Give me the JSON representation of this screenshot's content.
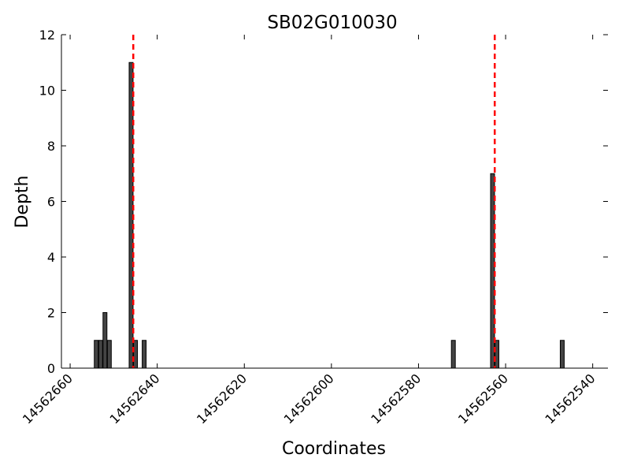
{
  "chart_data": {
    "type": "bar",
    "title": "SB02G010030",
    "xlabel": "Coordinates",
    "ylabel": "Depth",
    "xlim": [
      14562662,
      14562536.5
    ],
    "ylim": [
      0,
      12
    ],
    "x_reversed": true,
    "x_ticks": [
      14562660,
      14562640,
      14562620,
      14562600,
      14562580,
      14562560,
      14562540
    ],
    "y_ticks": [
      0,
      2,
      4,
      6,
      8,
      10,
      12
    ],
    "bar_color": "#444444",
    "marker_color": "#ff0000",
    "grid": false,
    "series": [
      {
        "x": [
          14562654,
          14562653,
          14562652,
          14562651,
          14562646,
          14562645,
          14562643,
          14562572,
          14562563,
          14562562,
          14562547
        ],
        "values": [
          1,
          1,
          2,
          1,
          11,
          1,
          1,
          1,
          7,
          1,
          1
        ]
      }
    ],
    "reference_lines": [
      14562645.5,
      14562562.5
    ]
  }
}
